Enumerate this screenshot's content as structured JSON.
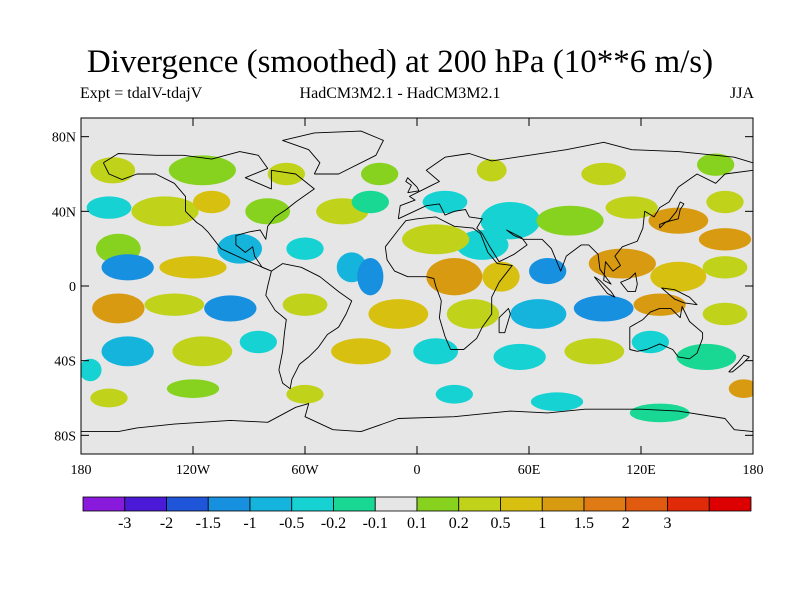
{
  "title": "Divergence (smoothed) at 200 hPa (10**6 m/s)",
  "subtitle_left": "Expt = tdalV-tdajV",
  "subtitle_center": "HadCM3M2.1 - HadCM3M2.1",
  "subtitle_right": "JJA",
  "map_background": "#e6e6e6",
  "lat_ticks": [
    {
      "label": "80N",
      "lat": 80
    },
    {
      "label": "40N",
      "lat": 40
    },
    {
      "label": "0",
      "lat": 0
    },
    {
      "label": "40S",
      "lat": -40
    },
    {
      "label": "80S",
      "lat": -80
    }
  ],
  "lon_ticks": [
    {
      "label": "180",
      "lon": -180
    },
    {
      "label": "120W",
      "lon": -120
    },
    {
      "label": "60W",
      "lon": -60
    },
    {
      "label": "0",
      "lon": 0
    },
    {
      "label": "60E",
      "lon": 60
    },
    {
      "label": "120E",
      "lon": 120
    },
    {
      "label": "180",
      "lon": 180
    }
  ],
  "colorbar": {
    "colors": [
      "#8a1adb",
      "#4a1ad6",
      "#1f55d9",
      "#1890e0",
      "#14b4dd",
      "#16d2d2",
      "#18d894",
      "#e6e6e6",
      "#86d21f",
      "#c0d21a",
      "#d8c010",
      "#d89a10",
      "#e07a14",
      "#e05a10",
      "#e02a0a",
      "#dc0000"
    ],
    "labels": [
      "-3",
      "-2",
      "-1.5",
      "-1",
      "-0.5",
      "-0.2",
      "-0.1",
      "0.1",
      "0.2",
      "0.5",
      "1",
      "1.5",
      "2",
      "3"
    ]
  },
  "field_blobs": [
    {
      "lon": -163,
      "lat": 62,
      "rlon": 12,
      "rlat": 7,
      "color_index": 9
    },
    {
      "lon": -115,
      "lat": 62,
      "rlon": 18,
      "rlat": 8,
      "color_index": 8
    },
    {
      "lon": -70,
      "lat": 60,
      "rlon": 10,
      "rlat": 6,
      "color_index": 9
    },
    {
      "lon": -20,
      "lat": 60,
      "rlon": 10,
      "rlat": 6,
      "color_index": 8
    },
    {
      "lon": 40,
      "lat": 62,
      "rlon": 8,
      "rlat": 6,
      "color_index": 9
    },
    {
      "lon": 100,
      "lat": 60,
      "rlon": 12,
      "rlat": 6,
      "color_index": 9
    },
    {
      "lon": 160,
      "lat": 65,
      "rlon": 10,
      "rlat": 6,
      "color_index": 8
    },
    {
      "lon": -165,
      "lat": 42,
      "rlon": 12,
      "rlat": 6,
      "color_index": 5
    },
    {
      "lon": -135,
      "lat": 40,
      "rlon": 18,
      "rlat": 8,
      "color_index": 9
    },
    {
      "lon": -110,
      "lat": 45,
      "rlon": 10,
      "rlat": 6,
      "color_index": 10
    },
    {
      "lon": -80,
      "lat": 40,
      "rlon": 12,
      "rlat": 7,
      "color_index": 8
    },
    {
      "lon": -40,
      "lat": 40,
      "rlon": 14,
      "rlat": 7,
      "color_index": 9
    },
    {
      "lon": -25,
      "lat": 45,
      "rlon": 10,
      "rlat": 6,
      "color_index": 6
    },
    {
      "lon": 15,
      "lat": 45,
      "rlon": 12,
      "rlat": 6,
      "color_index": 5
    },
    {
      "lon": 50,
      "lat": 35,
      "rlon": 16,
      "rlat": 10,
      "color_index": 5
    },
    {
      "lon": 35,
      "lat": 22,
      "rlon": 14,
      "rlat": 8,
      "color_index": 5
    },
    {
      "lon": 82,
      "lat": 35,
      "rlon": 18,
      "rlat": 8,
      "color_index": 8
    },
    {
      "lon": 115,
      "lat": 42,
      "rlon": 14,
      "rlat": 6,
      "color_index": 9
    },
    {
      "lon": 140,
      "lat": 35,
      "rlon": 16,
      "rlat": 7,
      "color_index": 11
    },
    {
      "lon": 165,
      "lat": 25,
      "rlon": 14,
      "rlat": 6,
      "color_index": 11
    },
    {
      "lon": 165,
      "lat": 45,
      "rlon": 10,
      "rlat": 6,
      "color_index": 9
    },
    {
      "lon": -160,
      "lat": 20,
      "rlon": 12,
      "rlat": 8,
      "color_index": 8
    },
    {
      "lon": -155,
      "lat": 10,
      "rlon": 14,
      "rlat": 7,
      "color_index": 3
    },
    {
      "lon": -120,
      "lat": 10,
      "rlon": 18,
      "rlat": 6,
      "color_index": 10
    },
    {
      "lon": -95,
      "lat": 20,
      "rlon": 12,
      "rlat": 8,
      "color_index": 4
    },
    {
      "lon": -60,
      "lat": 20,
      "rlon": 10,
      "rlat": 6,
      "color_index": 5
    },
    {
      "lon": -35,
      "lat": 10,
      "rlon": 8,
      "rlat": 8,
      "color_index": 4
    },
    {
      "lon": -25,
      "lat": 5,
      "rlon": 7,
      "rlat": 10,
      "color_index": 3
    },
    {
      "lon": 10,
      "lat": 25,
      "rlon": 18,
      "rlat": 8,
      "color_index": 9
    },
    {
      "lon": 20,
      "lat": 5,
      "rlon": 15,
      "rlat": 10,
      "color_index": 11
    },
    {
      "lon": 45,
      "lat": 5,
      "rlon": 10,
      "rlat": 8,
      "color_index": 10
    },
    {
      "lon": 70,
      "lat": 8,
      "rlon": 10,
      "rlat": 7,
      "color_index": 3
    },
    {
      "lon": 110,
      "lat": 12,
      "rlon": 18,
      "rlat": 8,
      "color_index": 11
    },
    {
      "lon": 140,
      "lat": 5,
      "rlon": 15,
      "rlat": 8,
      "color_index": 10
    },
    {
      "lon": 165,
      "lat": 10,
      "rlon": 12,
      "rlat": 6,
      "color_index": 9
    },
    {
      "lon": -160,
      "lat": -12,
      "rlon": 14,
      "rlat": 8,
      "color_index": 11
    },
    {
      "lon": -130,
      "lat": -10,
      "rlon": 16,
      "rlat": 6,
      "color_index": 9
    },
    {
      "lon": -100,
      "lat": -12,
      "rlon": 14,
      "rlat": 7,
      "color_index": 3
    },
    {
      "lon": -60,
      "lat": -10,
      "rlon": 12,
      "rlat": 6,
      "color_index": 9
    },
    {
      "lon": -10,
      "lat": -15,
      "rlon": 16,
      "rlat": 8,
      "color_index": 10
    },
    {
      "lon": 30,
      "lat": -15,
      "rlon": 14,
      "rlat": 8,
      "color_index": 9
    },
    {
      "lon": 65,
      "lat": -15,
      "rlon": 15,
      "rlat": 8,
      "color_index": 4
    },
    {
      "lon": 100,
      "lat": -12,
      "rlon": 16,
      "rlat": 7,
      "color_index": 3
    },
    {
      "lon": 130,
      "lat": -10,
      "rlon": 14,
      "rlat": 6,
      "color_index": 11
    },
    {
      "lon": 165,
      "lat": -15,
      "rlon": 12,
      "rlat": 6,
      "color_index": 9
    },
    {
      "lon": -155,
      "lat": -35,
      "rlon": 14,
      "rlat": 8,
      "color_index": 4
    },
    {
      "lon": -115,
      "lat": -35,
      "rlon": 16,
      "rlat": 8,
      "color_index": 9
    },
    {
      "lon": -85,
      "lat": -30,
      "rlon": 10,
      "rlat": 6,
      "color_index": 5
    },
    {
      "lon": -30,
      "lat": -35,
      "rlon": 16,
      "rlat": 7,
      "color_index": 10
    },
    {
      "lon": 10,
      "lat": -35,
      "rlon": 12,
      "rlat": 7,
      "color_index": 5
    },
    {
      "lon": 55,
      "lat": -38,
      "rlon": 14,
      "rlat": 7,
      "color_index": 5
    },
    {
      "lon": 95,
      "lat": -35,
      "rlon": 16,
      "rlat": 7,
      "color_index": 9
    },
    {
      "lon": 125,
      "lat": -30,
      "rlon": 10,
      "rlat": 6,
      "color_index": 5
    },
    {
      "lon": 155,
      "lat": -38,
      "rlon": 16,
      "rlat": 7,
      "color_index": 6
    },
    {
      "lon": -175,
      "lat": -45,
      "rlon": 6,
      "rlat": 6,
      "color_index": 5
    },
    {
      "lon": -165,
      "lat": -60,
      "rlon": 10,
      "rlat": 5,
      "color_index": 9
    },
    {
      "lon": -120,
      "lat": -55,
      "rlon": 14,
      "rlat": 5,
      "color_index": 8
    },
    {
      "lon": -60,
      "lat": -58,
      "rlon": 10,
      "rlat": 5,
      "color_index": 9
    },
    {
      "lon": 20,
      "lat": -58,
      "rlon": 10,
      "rlat": 5,
      "color_index": 5
    },
    {
      "lon": 75,
      "lat": -62,
      "rlon": 14,
      "rlat": 5,
      "color_index": 5
    },
    {
      "lon": 130,
      "lat": -68,
      "rlon": 16,
      "rlat": 5,
      "color_index": 6
    },
    {
      "lon": 175,
      "lat": -55,
      "rlon": 8,
      "rlat": 5,
      "color_index": 11
    }
  ],
  "coastlines": {
    "north_america": [
      [
        -168,
        66
      ],
      [
        -160,
        71
      ],
      [
        -140,
        70
      ],
      [
        -125,
        70
      ],
      [
        -110,
        68
      ],
      [
        -95,
        72
      ],
      [
        -85,
        70
      ],
      [
        -80,
        63
      ],
      [
        -92,
        58
      ],
      [
        -85,
        55
      ],
      [
        -78,
        52
      ],
      [
        -78,
        62
      ],
      [
        -65,
        60
      ],
      [
        -55,
        52
      ],
      [
        -65,
        45
      ],
      [
        -70,
        41
      ],
      [
        -76,
        37
      ],
      [
        -80,
        32
      ],
      [
        -81,
        25
      ],
      [
        -84,
        30
      ],
      [
        -90,
        29
      ],
      [
        -97,
        27
      ],
      [
        -97,
        22
      ],
      [
        -92,
        18
      ],
      [
        -88,
        21
      ],
      [
        -87,
        16
      ],
      [
        -83,
        10
      ],
      [
        -78,
        8
      ],
      [
        -85,
        11
      ],
      [
        -92,
        14
      ],
      [
        -105,
        20
      ],
      [
        -112,
        29
      ],
      [
        -115,
        32
      ],
      [
        -118,
        34
      ],
      [
        -124,
        40
      ],
      [
        -124,
        48
      ],
      [
        -130,
        55
      ],
      [
        -140,
        60
      ],
      [
        -150,
        60
      ],
      [
        -158,
        57
      ],
      [
        -165,
        60
      ],
      [
        -168,
        66
      ]
    ],
    "south_america": [
      [
        -78,
        8
      ],
      [
        -72,
        12
      ],
      [
        -62,
        10
      ],
      [
        -52,
        5
      ],
      [
        -42,
        -3
      ],
      [
        -35,
        -8
      ],
      [
        -38,
        -15
      ],
      [
        -42,
        -22
      ],
      [
        -48,
        -26
      ],
      [
        -53,
        -33
      ],
      [
        -58,
        -38
      ],
      [
        -63,
        -42
      ],
      [
        -67,
        -50
      ],
      [
        -68,
        -55
      ],
      [
        -72,
        -52
      ],
      [
        -74,
        -45
      ],
      [
        -72,
        -35
      ],
      [
        -71,
        -25
      ],
      [
        -70,
        -18
      ],
      [
        -76,
        -13
      ],
      [
        -81,
        -5
      ],
      [
        -80,
        0
      ],
      [
        -78,
        8
      ]
    ],
    "greenland": [
      [
        -55,
        60
      ],
      [
        -42,
        60
      ],
      [
        -22,
        70
      ],
      [
        -18,
        78
      ],
      [
        -30,
        83
      ],
      [
        -55,
        82
      ],
      [
        -72,
        78
      ],
      [
        -58,
        73
      ],
      [
        -52,
        66
      ],
      [
        -55,
        60
      ]
    ],
    "africa": [
      [
        -17,
        21
      ],
      [
        -16,
        14
      ],
      [
        -12,
        8
      ],
      [
        -5,
        5
      ],
      [
        5,
        5
      ],
      [
        9,
        4
      ],
      [
        10,
        0
      ],
      [
        13,
        -8
      ],
      [
        12,
        -17
      ],
      [
        15,
        -27
      ],
      [
        18,
        -34
      ],
      [
        25,
        -34
      ],
      [
        32,
        -28
      ],
      [
        35,
        -22
      ],
      [
        40,
        -15
      ],
      [
        40,
        -6
      ],
      [
        44,
        2
      ],
      [
        51,
        11
      ],
      [
        43,
        12
      ],
      [
        38,
        18
      ],
      [
        34,
        28
      ],
      [
        30,
        31
      ],
      [
        20,
        32
      ],
      [
        10,
        37
      ],
      [
        0,
        36
      ],
      [
        -6,
        35
      ],
      [
        -10,
        30
      ],
      [
        -17,
        21
      ]
    ],
    "eurasia": [
      [
        -10,
        36
      ],
      [
        -9,
        43
      ],
      [
        -1,
        46
      ],
      [
        -4,
        48
      ],
      [
        2,
        51
      ],
      [
        8,
        54
      ],
      [
        12,
        56
      ],
      [
        5,
        62
      ],
      [
        15,
        69
      ],
      [
        28,
        71
      ],
      [
        40,
        67
      ],
      [
        60,
        70
      ],
      [
        80,
        73
      ],
      [
        100,
        77
      ],
      [
        115,
        73
      ],
      [
        140,
        72
      ],
      [
        160,
        70
      ],
      [
        170,
        69
      ],
      [
        180,
        66
      ],
      [
        180,
        62
      ],
      [
        165,
        60
      ],
      [
        160,
        55
      ],
      [
        150,
        60
      ],
      [
        140,
        53
      ],
      [
        135,
        45
      ],
      [
        130,
        42
      ],
      [
        127,
        37
      ],
      [
        122,
        40
      ],
      [
        121,
        31
      ],
      [
        118,
        24
      ],
      [
        110,
        21
      ],
      [
        106,
        16
      ],
      [
        109,
        11
      ],
      [
        105,
        8
      ],
      [
        101,
        13
      ],
      [
        100,
        3
      ],
      [
        104,
        1
      ],
      [
        98,
        9
      ],
      [
        97,
        17
      ],
      [
        92,
        22
      ],
      [
        88,
        22
      ],
      [
        80,
        16
      ],
      [
        77,
        8
      ],
      [
        72,
        20
      ],
      [
        67,
        25
      ],
      [
        57,
        25
      ],
      [
        52,
        27
      ],
      [
        48,
        30
      ],
      [
        56,
        26
      ],
      [
        59,
        22
      ],
      [
        52,
        17
      ],
      [
        44,
        13
      ],
      [
        39,
        21
      ],
      [
        35,
        28
      ],
      [
        32,
        31
      ],
      [
        35,
        36
      ],
      [
        28,
        37
      ],
      [
        26,
        41
      ],
      [
        20,
        40
      ],
      [
        15,
        38
      ],
      [
        12,
        44
      ],
      [
        5,
        43
      ],
      [
        -10,
        36
      ]
    ],
    "australia": [
      [
        114,
        -22
      ],
      [
        114,
        -34
      ],
      [
        118,
        -35
      ],
      [
        123,
        -34
      ],
      [
        130,
        -31
      ],
      [
        137,
        -34
      ],
      [
        140,
        -38
      ],
      [
        146,
        -39
      ],
      [
        150,
        -36
      ],
      [
        153,
        -28
      ],
      [
        153,
        -25
      ],
      [
        146,
        -19
      ],
      [
        142,
        -11
      ],
      [
        141,
        -17
      ],
      [
        136,
        -12
      ],
      [
        130,
        -12
      ],
      [
        125,
        -14
      ],
      [
        121,
        -18
      ],
      [
        114,
        -22
      ]
    ],
    "britain": [
      [
        -5,
        50
      ],
      [
        1,
        51
      ],
      [
        0,
        53
      ],
      [
        -3,
        56
      ],
      [
        -5,
        58
      ],
      [
        -6,
        56
      ],
      [
        -3,
        54
      ],
      [
        -5,
        50
      ]
    ],
    "japan": [
      [
        130,
        31
      ],
      [
        133,
        34
      ],
      [
        136,
        35
      ],
      [
        140,
        36
      ],
      [
        141,
        41
      ],
      [
        143,
        44
      ],
      [
        141,
        45
      ],
      [
        139,
        40
      ],
      [
        135,
        35
      ],
      [
        130,
        33
      ],
      [
        130,
        31
      ]
    ],
    "madagascar": [
      [
        44,
        -25
      ],
      [
        47,
        -25
      ],
      [
        50,
        -15
      ],
      [
        49,
        -12
      ],
      [
        44,
        -17
      ],
      [
        44,
        -25
      ]
    ],
    "borneo": [
      [
        109,
        2
      ],
      [
        113,
        -3
      ],
      [
        117,
        -3
      ],
      [
        118,
        1
      ],
      [
        117,
        7
      ],
      [
        114,
        4
      ],
      [
        109,
        2
      ]
    ],
    "sumatra": [
      [
        95,
        5
      ],
      [
        98,
        3
      ],
      [
        104,
        -3
      ],
      [
        106,
        -6
      ],
      [
        102,
        -4
      ],
      [
        95,
        5
      ]
    ],
    "new_guinea": [
      [
        131,
        -1
      ],
      [
        138,
        -2
      ],
      [
        146,
        -6
      ],
      [
        150,
        -10
      ],
      [
        143,
        -9
      ],
      [
        138,
        -7
      ],
      [
        131,
        -1
      ]
    ],
    "new_zealand": [
      [
        167,
        -46
      ],
      [
        172,
        -41
      ],
      [
        175,
        -37
      ],
      [
        178,
        -38
      ],
      [
        174,
        -42
      ],
      [
        169,
        -46
      ],
      [
        167,
        -46
      ]
    ],
    "antarctica": [
      [
        -180,
        -78
      ],
      [
        -160,
        -78
      ],
      [
        -150,
        -76
      ],
      [
        -130,
        -74
      ],
      [
        -100,
        -72
      ],
      [
        -80,
        -73
      ],
      [
        -65,
        -65
      ],
      [
        -58,
        -63
      ],
      [
        -60,
        -70
      ],
      [
        -45,
        -77
      ],
      [
        -30,
        -78
      ],
      [
        -10,
        -71
      ],
      [
        20,
        -70
      ],
      [
        50,
        -67
      ],
      [
        70,
        -68
      ],
      [
        90,
        -66
      ],
      [
        120,
        -66
      ],
      [
        140,
        -67
      ],
      [
        165,
        -71
      ],
      [
        170,
        -77
      ],
      [
        180,
        -78
      ]
    ]
  }
}
